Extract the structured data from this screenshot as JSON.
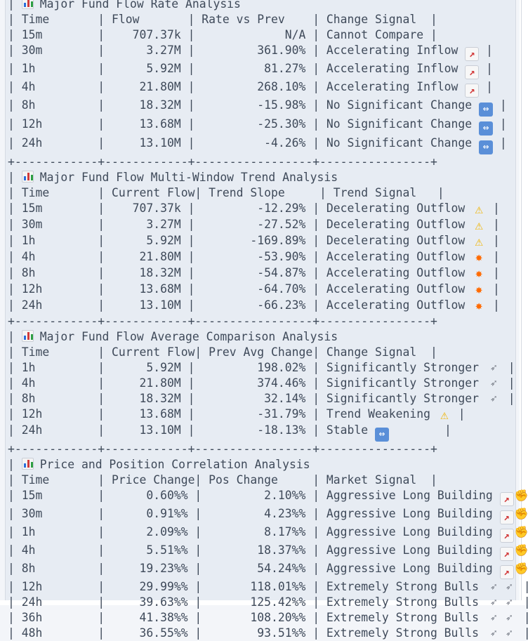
{
  "sections": [
    {
      "title": "Major Fund Flow Rate Analysis",
      "header": "| Time       | Flow       | Rate vs Prev    | Change Signal  |",
      "rows": [
        "| 15m        |    707.37k |             N/A | Cannot Compare |",
        "| 30m        |      3.27M |         361.90% | Accelerating Inflow ",
        "| 1h         |      5.92M |          81.27% | Accelerating Inflow ",
        "| 4h         |     21.80M |         268.10% | Accelerating Inflow ",
        "| 8h         |     18.32M |         -15.98% | No Significant Change ",
        "| 12h        |     13.68M |         -25.30% | No Significant Change ",
        "| 24h        |     13.10M |          -4.26% | No Significant Change "
      ],
      "row_icons": [
        "",
        "chart-increasing-icon",
        "chart-increasing-icon",
        "chart-increasing-icon",
        "left-right-arrow-icon",
        "left-right-arrow-icon",
        "left-right-arrow-icon"
      ],
      "row_tails": [
        "",
        " |",
        " |",
        " |",
        " |",
        " |",
        " |"
      ],
      "border": "+------------+------------+-----------------+----------------+"
    },
    {
      "title": "Major Fund Flow Multi-Window Trend Analysis",
      "header": "| Time       | Current Flow| Trend Slope     | Trend Signal   |",
      "rows": [
        "| 15m        |    707.37k |         -12.29% | Decelerating Outflow ",
        "| 30m        |      3.27M |         -27.52% | Decelerating Outflow ",
        "| 1h         |      5.92M |        -169.89% | Decelerating Outflow ",
        "| 4h         |     21.80M |         -53.90% | Accelerating Outflow ",
        "| 8h         |     18.32M |         -54.87% | Accelerating Outflow ",
        "| 12h        |     13.68M |         -64.70% | Accelerating Outflow ",
        "| 24h        |     13.10M |         -66.23% | Accelerating Outflow "
      ],
      "row_icons": [
        "warning-icon",
        "warning-icon",
        "warning-icon",
        "collision-icon",
        "collision-icon",
        "collision-icon",
        "collision-icon"
      ],
      "row_tails": [
        " |",
        " |",
        " |",
        " |",
        " |",
        " |",
        " |"
      ],
      "border": "+------------+------------+-----------------+----------------+"
    },
    {
      "title": "Major Fund Flow Average Comparison Analysis",
      "header": "| Time       | Current Flow| Prev Avg Change| Change Signal  |",
      "rows": [
        "| 1h         |      5.92M |         198.02% | Significantly Stronger ",
        "| 4h         |     21.80M |         374.46% | Significantly Stronger ",
        "| 8h         |     18.32M |          32.14% | Significantly Stronger ",
        "| 12h        |     13.68M |         -31.79% | Trend Weakening ",
        "| 24h        |     13.10M |         -18.13% | Stable "
      ],
      "row_icons": [
        "rocket-icon",
        "rocket-icon",
        "rocket-icon",
        "warning-icon",
        "left-right-arrow-icon"
      ],
      "row_tails": [
        " |",
        " |",
        " |",
        " |",
        "        |"
      ],
      "border": "+------------+------------+-----------------+----------------+"
    },
    {
      "title": "Price and Position Correlation Analysis",
      "header": "| Time       | Price Change| Pos Change     | Market Signal  |",
      "rows": [
        "| 15m        |      0.60%% |         2.10%% | Aggressive Long Building ",
        "| 30m        |      0.91%% |         4.23%% | Aggressive Long Building ",
        "| 1h         |      2.09%% |         8.17%% | Aggressive Long Building ",
        "| 4h         |      5.51%% |        18.37%% | Aggressive Long Building ",
        "| 8h         |     19.23%% |        54.24%% | Aggressive Long Building ",
        "| 12h        |     29.99%% |       118.01%% | Extremely Strong Bulls ",
        "| 24h        |     39.63%% |       125.42%% | Extremely Strong Bulls ",
        "| 36h        |     41.38%% |       108.20%% | Extremely Strong Bulls ",
        "| 48h        |     36.55%% |        93.51%% | Extremely Strong Bulls "
      ],
      "row_icons": [
        "chart-flexed-biceps-icon",
        "chart-flexed-biceps-icon",
        "chart-flexed-biceps-icon",
        "chart-flexed-biceps-icon",
        "chart-flexed-biceps-icon",
        "rocket-rocket-icon",
        "rocket-rocket-icon",
        "rocket-rocket-icon",
        "rocket-rocket-icon"
      ],
      "row_tails": [
        " |",
        " |",
        " |",
        " |",
        " |",
        " |",
        " |",
        " |",
        " |"
      ],
      "border": ""
    }
  ]
}
